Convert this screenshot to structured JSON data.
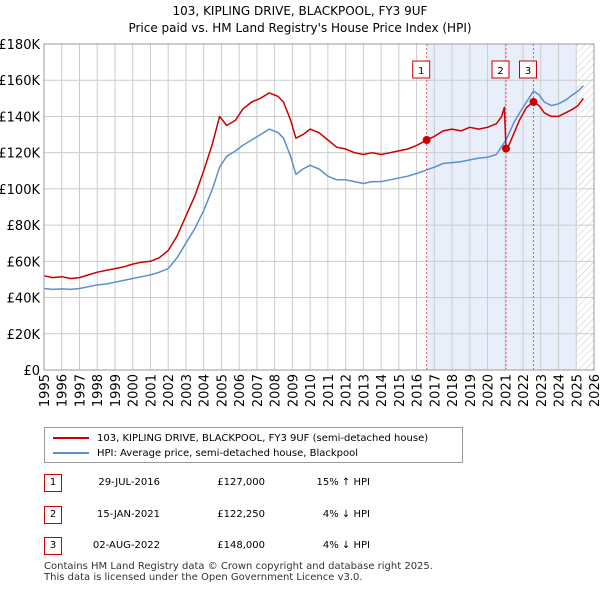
{
  "chart_data": {
    "type": "line",
    "title": "103, KIPLING DRIVE, BLACKPOOL, FY3 9UF",
    "subtitle": "Price paid vs. HM Land Registry's House Price Index (HPI)",
    "xlabel": "",
    "ylabel": "",
    "xlim": [
      1995,
      2026
    ],
    "ylim": [
      0,
      180000
    ],
    "yticks": [
      {
        "value": 0,
        "label": "£0"
      },
      {
        "value": 20000,
        "label": "£20K"
      },
      {
        "value": 40000,
        "label": "£40K"
      },
      {
        "value": 60000,
        "label": "£60K"
      },
      {
        "value": 80000,
        "label": "£80K"
      },
      {
        "value": 100000,
        "label": "£100K"
      },
      {
        "value": 120000,
        "label": "£120K"
      },
      {
        "value": 140000,
        "label": "£140K"
      },
      {
        "value": 160000,
        "label": "£160K"
      },
      {
        "value": 180000,
        "label": "£180K"
      }
    ],
    "xticks": [
      "1995",
      "1996",
      "1997",
      "1998",
      "1999",
      "2000",
      "2001",
      "2002",
      "2003",
      "2004",
      "2005",
      "2006",
      "2007",
      "2008",
      "2009",
      "2010",
      "2011",
      "2012",
      "2013",
      "2014",
      "2015",
      "2016",
      "2017",
      "2018",
      "2019",
      "2020",
      "2021",
      "2022",
      "2023",
      "2024",
      "2025",
      "2026"
    ],
    "grid": true,
    "shaded_region": [
      2016.57,
      2025.0
    ],
    "hatched_region": [
      2025.0,
      2026.0
    ],
    "series": [
      {
        "name": "103, KIPLING DRIVE, BLACKPOOL, FY3 9UF (semi-detached house)",
        "color": "#cc0000",
        "points": [
          [
            1995.0,
            52000
          ],
          [
            1995.5,
            51000
          ],
          [
            1996.0,
            51500
          ],
          [
            1996.5,
            50500
          ],
          [
            1997.0,
            51000
          ],
          [
            1997.5,
            52500
          ],
          [
            1998.0,
            54000
          ],
          [
            1998.5,
            55000
          ],
          [
            1999.0,
            56000
          ],
          [
            1999.5,
            57000
          ],
          [
            2000.0,
            58500
          ],
          [
            2000.5,
            59500
          ],
          [
            2001.0,
            60000
          ],
          [
            2001.5,
            62000
          ],
          [
            2002.0,
            66000
          ],
          [
            2002.5,
            74000
          ],
          [
            2003.0,
            85000
          ],
          [
            2003.5,
            96000
          ],
          [
            2004.0,
            110000
          ],
          [
            2004.5,
            125000
          ],
          [
            2004.9,
            140000
          ],
          [
            2005.3,
            135000
          ],
          [
            2005.8,
            138000
          ],
          [
            2006.2,
            144000
          ],
          [
            2006.7,
            148000
          ],
          [
            2007.2,
            150000
          ],
          [
            2007.7,
            153000
          ],
          [
            2008.2,
            151000
          ],
          [
            2008.5,
            148000
          ],
          [
            2008.9,
            138000
          ],
          [
            2009.2,
            128000
          ],
          [
            2009.6,
            130000
          ],
          [
            2010.0,
            133000
          ],
          [
            2010.5,
            131000
          ],
          [
            2011.0,
            127000
          ],
          [
            2011.5,
            123000
          ],
          [
            2012.0,
            122000
          ],
          [
            2012.5,
            120000
          ],
          [
            2013.0,
            119000
          ],
          [
            2013.5,
            120000
          ],
          [
            2014.0,
            119000
          ],
          [
            2014.5,
            120000
          ],
          [
            2015.0,
            121000
          ],
          [
            2015.5,
            122000
          ],
          [
            2016.0,
            124000
          ],
          [
            2016.3,
            125500
          ],
          [
            2016.57,
            127000
          ],
          [
            2017.0,
            129000
          ],
          [
            2017.5,
            132000
          ],
          [
            2018.0,
            133000
          ],
          [
            2018.5,
            132000
          ],
          [
            2019.0,
            134000
          ],
          [
            2019.5,
            133000
          ],
          [
            2020.0,
            134000
          ],
          [
            2020.5,
            136000
          ],
          [
            2020.8,
            140000
          ],
          [
            2020.95,
            145000
          ],
          [
            2021.04,
            122250
          ],
          [
            2021.2,
            124000
          ],
          [
            2021.5,
            131000
          ],
          [
            2021.8,
            138000
          ],
          [
            2022.2,
            145000
          ],
          [
            2022.59,
            148000
          ],
          [
            2022.9,
            146000
          ],
          [
            2023.2,
            142000
          ],
          [
            2023.6,
            140000
          ],
          [
            2024.0,
            140000
          ],
          [
            2024.4,
            142000
          ],
          [
            2024.8,
            144000
          ],
          [
            2025.1,
            146000
          ],
          [
            2025.4,
            150000
          ]
        ]
      },
      {
        "name": "HPI: Average price, semi-detached house, Blackpool",
        "color": "#5b8fd0",
        "points": [
          [
            1995.0,
            45000
          ],
          [
            1995.5,
            44500
          ],
          [
            1996.0,
            44800
          ],
          [
            1996.5,
            44500
          ],
          [
            1997.0,
            45000
          ],
          [
            1997.5,
            46000
          ],
          [
            1998.0,
            47000
          ],
          [
            1998.5,
            47500
          ],
          [
            1999.0,
            48500
          ],
          [
            1999.5,
            49500
          ],
          [
            2000.0,
            50500
          ],
          [
            2000.5,
            51500
          ],
          [
            2001.0,
            52500
          ],
          [
            2001.5,
            54000
          ],
          [
            2002.0,
            56000
          ],
          [
            2002.5,
            62000
          ],
          [
            2003.0,
            70000
          ],
          [
            2003.5,
            78000
          ],
          [
            2004.0,
            88000
          ],
          [
            2004.5,
            100000
          ],
          [
            2004.9,
            112000
          ],
          [
            2005.3,
            118000
          ],
          [
            2005.8,
            121000
          ],
          [
            2006.2,
            124000
          ],
          [
            2006.7,
            127000
          ],
          [
            2007.2,
            130000
          ],
          [
            2007.7,
            133000
          ],
          [
            2008.2,
            131000
          ],
          [
            2008.5,
            128000
          ],
          [
            2008.9,
            118000
          ],
          [
            2009.2,
            108000
          ],
          [
            2009.6,
            111000
          ],
          [
            2010.0,
            113000
          ],
          [
            2010.5,
            111000
          ],
          [
            2011.0,
            107000
          ],
          [
            2011.5,
            105000
          ],
          [
            2012.0,
            105000
          ],
          [
            2012.5,
            104000
          ],
          [
            2013.0,
            103000
          ],
          [
            2013.5,
            104000
          ],
          [
            2014.0,
            104000
          ],
          [
            2014.5,
            105000
          ],
          [
            2015.0,
            106000
          ],
          [
            2015.5,
            107000
          ],
          [
            2016.0,
            108500
          ],
          [
            2016.57,
            110500
          ],
          [
            2017.0,
            112000
          ],
          [
            2017.5,
            114000
          ],
          [
            2018.0,
            114500
          ],
          [
            2018.5,
            115000
          ],
          [
            2019.0,
            116000
          ],
          [
            2019.5,
            117000
          ],
          [
            2020.0,
            117500
          ],
          [
            2020.5,
            119000
          ],
          [
            2021.04,
            127000
          ],
          [
            2021.5,
            137000
          ],
          [
            2022.0,
            145000
          ],
          [
            2022.59,
            154000
          ],
          [
            2022.9,
            152000
          ],
          [
            2023.2,
            148000
          ],
          [
            2023.6,
            146000
          ],
          [
            2024.0,
            147000
          ],
          [
            2024.4,
            149000
          ],
          [
            2024.8,
            152000
          ],
          [
            2025.1,
            154000
          ],
          [
            2025.4,
            157000
          ]
        ]
      }
    ],
    "sales": [
      {
        "marker": "1",
        "x": 2016.57,
        "value": 127000
      },
      {
        "marker": "2",
        "x": 2021.04,
        "value": 122250
      },
      {
        "marker": "3",
        "x": 2022.59,
        "value": 148000
      }
    ]
  },
  "legend": {
    "property_label": "103, KIPLING DRIVE, BLACKPOOL, FY3 9UF (semi-detached house)",
    "hpi_label": "HPI: Average price, semi-detached house, Blackpool"
  },
  "transactions": [
    {
      "num": "1",
      "date": "29-JUL-2016",
      "price": "£127,000",
      "hpi": "15% ↑ HPI"
    },
    {
      "num": "2",
      "date": "15-JAN-2021",
      "price": "£122,250",
      "hpi": "4% ↓ HPI"
    },
    {
      "num": "3",
      "date": "02-AUG-2022",
      "price": "£148,000",
      "hpi": "4% ↓ HPI"
    }
  ],
  "footer": {
    "line1": "Contains HM Land Registry data © Crown copyright and database right 2025.",
    "line2": "This data is licensed under the Open Government Licence v3.0."
  },
  "colors": {
    "property": "#cc0000",
    "hpi": "#5b8fd0",
    "shade": "#e8eefa",
    "grid": "#cccccc",
    "marker_border": "#cc0000"
  }
}
